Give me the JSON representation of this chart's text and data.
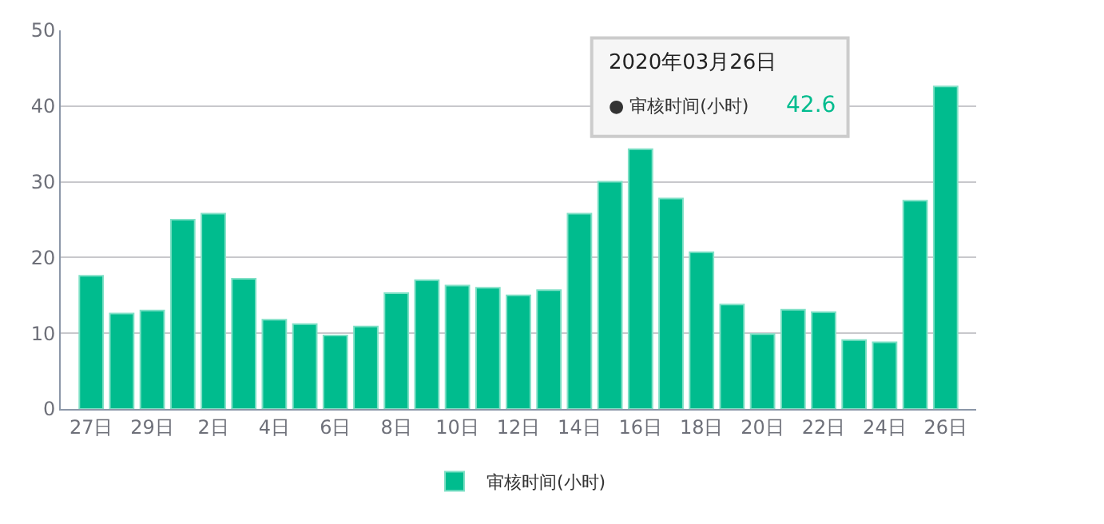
{
  "chart_data": {
    "type": "bar",
    "categories": [
      "27日",
      null,
      "29日",
      null,
      "2日",
      null,
      "4日",
      null,
      "6日",
      null,
      "8日",
      null,
      "10日",
      null,
      "12日",
      null,
      "14日",
      null,
      "16日",
      null,
      "18日",
      null,
      "20日",
      null,
      "22日",
      null,
      "24日",
      null,
      "26日"
    ],
    "series": [
      {
        "name": "审核时间(小时)",
        "color": "#00bc8e",
        "values": [
          17.6,
          12.6,
          13,
          25,
          25.8,
          17.2,
          11.8,
          11.2,
          9.7,
          10.9,
          15.3,
          17,
          16.3,
          16,
          15,
          15.7,
          25.8,
          30,
          34.3,
          27.8,
          20.7,
          13.8,
          9.9,
          13.1,
          12.8,
          9.1,
          8.8,
          27.5,
          42.6
        ]
      }
    ],
    "ylim": [
      0,
      50
    ],
    "yticks": [
      0,
      10,
      20,
      30,
      40,
      50
    ],
    "grid": "y",
    "legend": "bottom",
    "annotations": [
      "2020年03月26日",
      "● 审核时间(小时)",
      "42.6"
    ]
  }
}
